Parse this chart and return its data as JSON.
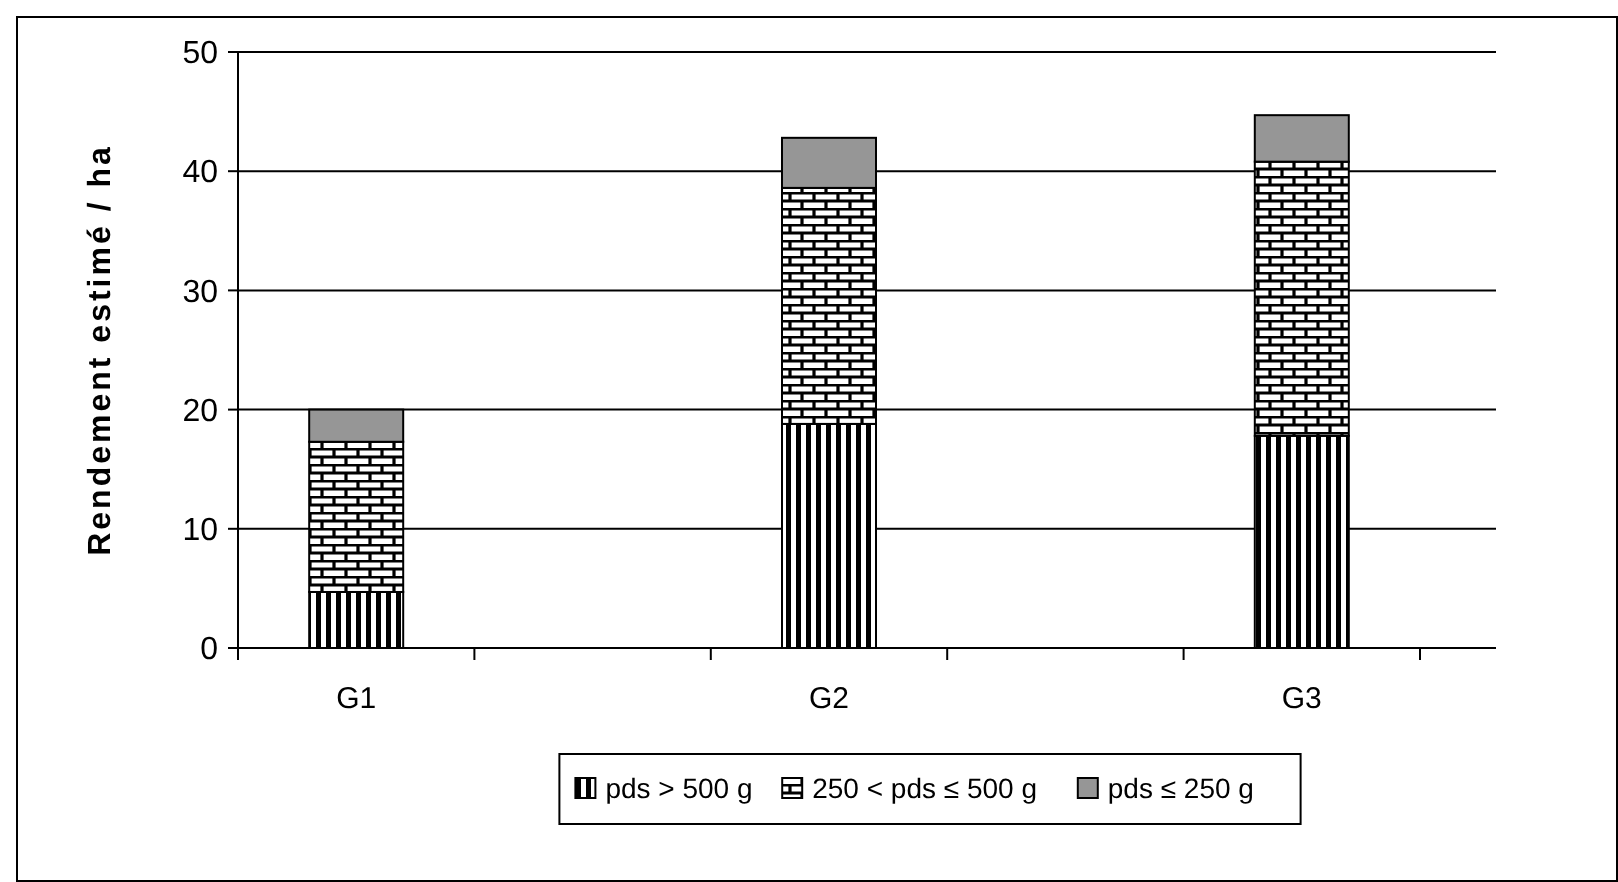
{
  "chart_data": {
    "type": "bar",
    "ylabel": "Rendement estimé / ha",
    "categories": [
      "G1",
      null,
      "G2",
      null,
      "G3"
    ],
    "stacked": true,
    "ylim": [
      0,
      50
    ],
    "yticks": [
      0,
      10,
      20,
      30,
      40,
      50
    ],
    "grid": "y",
    "legend": "bottom",
    "series": [
      {
        "name": "pds > 500 g",
        "color": "#000000",
        "values": [
          4.7,
          null,
          18.8,
          null,
          17.8
        ]
      },
      {
        "name": "250 < pds ≤ 500 g",
        "color": "#000000",
        "values": [
          12.6,
          null,
          19.8,
          null,
          23.0
        ]
      },
      {
        "name": "pds ≤ 250 g",
        "color": "#969696",
        "values": [
          2.7,
          null,
          4.2,
          null,
          3.9
        ]
      }
    ]
  }
}
